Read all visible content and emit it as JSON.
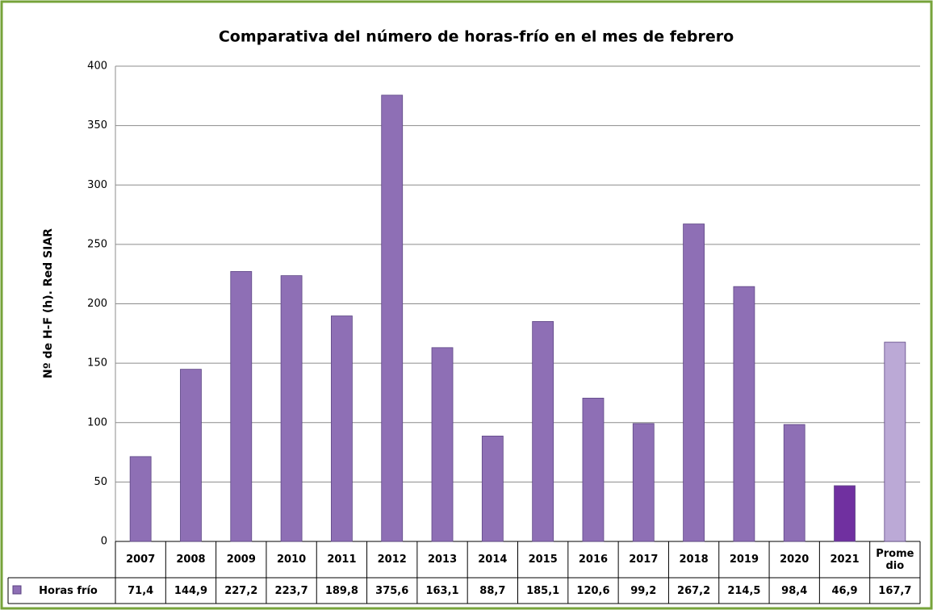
{
  "chart_data": {
    "type": "bar",
    "title": "Comparativa del número de horas-frío en el mes de febrero",
    "y_label": "Nº de H-F (h). Red SIAR",
    "categories": [
      "2007",
      "2008",
      "2009",
      "2010",
      "2011",
      "2012",
      "2013",
      "2014",
      "2015",
      "2016",
      "2017",
      "2018",
      "2019",
      "2020",
      "2021",
      "Prome dio"
    ],
    "series": [
      {
        "name": "Horas frío",
        "color": "#8e6fb5",
        "colors": [
          "#8e6fb5",
          "#8e6fb5",
          "#8e6fb5",
          "#8e6fb5",
          "#8e6fb5",
          "#8e6fb5",
          "#8e6fb5",
          "#8e6fb5",
          "#8e6fb5",
          "#8e6fb5",
          "#8e6fb5",
          "#8e6fb5",
          "#8e6fb5",
          "#8e6fb5",
          "#7030a0",
          "#bba9d6"
        ],
        "values": [
          71.4,
          144.9,
          227.2,
          223.7,
          189.8,
          375.6,
          163.1,
          88.7,
          185.1,
          120.6,
          99.2,
          267.2,
          214.5,
          98.4,
          46.9,
          167.7
        ],
        "value_labels": [
          "71,4",
          "144,9",
          "227,2",
          "223,7",
          "189,8",
          "375,6",
          "163,1",
          "88,7",
          "185,1",
          "120,6",
          "99,2",
          "267,2",
          "214,5",
          "98,4",
          "46,9",
          "167,7"
        ]
      }
    ],
    "ylim": [
      0,
      400
    ],
    "yticks": [
      0,
      50,
      100,
      150,
      200,
      250,
      300,
      350,
      400
    ],
    "grid": true
  }
}
